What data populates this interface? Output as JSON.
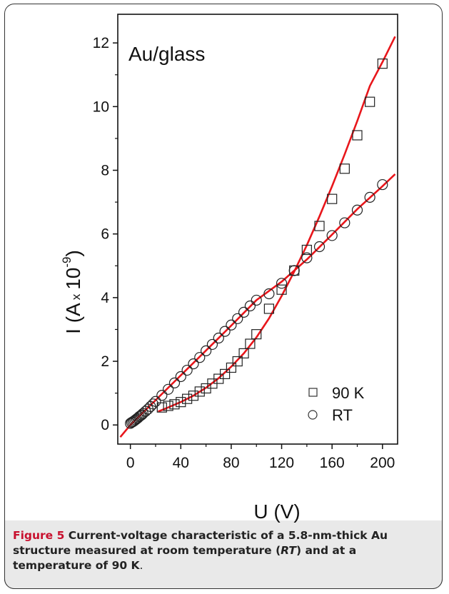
{
  "chart_data": {
    "type": "scatter",
    "annotation": "Au/glass",
    "xlabel": "U (V)",
    "ylabel_parts": {
      "main": "I (A",
      "times": "x",
      "base": "10",
      "exp": "-9",
      "close": ")"
    },
    "xlim": [
      -10,
      212
    ],
    "ylim": [
      -0.6,
      12.9
    ],
    "xticks": [
      0,
      40,
      80,
      120,
      160,
      200
    ],
    "yticks": [
      0,
      2,
      4,
      6,
      8,
      10,
      12
    ],
    "legend_position": "bottom-right",
    "fit_color": "#e8161b",
    "series": [
      {
        "name": "90 K",
        "marker": "square",
        "x": [
          25,
          30,
          35,
          40,
          45,
          50,
          55,
          60,
          65,
          70,
          75,
          80,
          85,
          90,
          95,
          100,
          110,
          120,
          130,
          140,
          150,
          160,
          170,
          180,
          190,
          200
        ],
        "y": [
          0.55,
          0.6,
          0.65,
          0.72,
          0.82,
          0.92,
          1.05,
          1.15,
          1.3,
          1.45,
          1.6,
          1.8,
          2.0,
          2.25,
          2.55,
          2.85,
          3.65,
          4.25,
          4.85,
          5.5,
          6.25,
          7.1,
          8.05,
          9.1,
          10.15,
          11.35
        ]
      },
      {
        "name": "RT",
        "marker": "circle",
        "x": [
          0,
          1,
          2,
          3,
          4,
          5,
          6,
          7,
          8,
          9,
          10,
          12,
          14,
          16,
          18,
          20,
          25,
          30,
          35,
          40,
          45,
          50,
          55,
          60,
          65,
          70,
          75,
          80,
          85,
          90,
          95,
          100,
          110,
          120,
          130,
          140,
          150,
          160,
          170,
          180,
          190,
          200
        ],
        "y": [
          0.05,
          0.08,
          0.1,
          0.13,
          0.16,
          0.19,
          0.22,
          0.26,
          0.29,
          0.32,
          0.36,
          0.43,
          0.5,
          0.58,
          0.66,
          0.74,
          0.93,
          1.12,
          1.32,
          1.52,
          1.72,
          1.92,
          2.12,
          2.33,
          2.53,
          2.73,
          2.94,
          3.14,
          3.34,
          3.54,
          3.74,
          3.92,
          4.12,
          4.45,
          4.85,
          5.25,
          5.6,
          5.95,
          6.35,
          6.75,
          7.15,
          7.55
        ]
      }
    ],
    "fits": [
      {
        "for": "90 K",
        "x": [
          22,
          30,
          40,
          50,
          60,
          70,
          80,
          90,
          100,
          110,
          120,
          130,
          140,
          150,
          160,
          170,
          180,
          190,
          200,
          210
        ],
        "y": [
          0.42,
          0.55,
          0.72,
          0.92,
          1.17,
          1.47,
          1.83,
          2.25,
          2.75,
          3.35,
          4.05,
          4.82,
          5.65,
          6.55,
          7.5,
          8.5,
          9.55,
          10.65,
          11.4,
          12.2
        ]
      },
      {
        "for": "RT",
        "x": [
          -8,
          0,
          20,
          40,
          60,
          80,
          100,
          120,
          140,
          160,
          180,
          200,
          210
        ],
        "y": [
          -0.38,
          0.0,
          0.78,
          1.56,
          2.34,
          3.12,
          3.92,
          4.5,
          5.2,
          5.98,
          6.78,
          7.5,
          7.88
        ]
      }
    ]
  },
  "caption": {
    "label": "Figure 5",
    "text": " Current-voltage characteristic of a 5.8-nm-thick Au structure measured at room temperature (",
    "rt": "RT",
    "text2": ") and at a temperature of 90 K",
    "end": "."
  }
}
